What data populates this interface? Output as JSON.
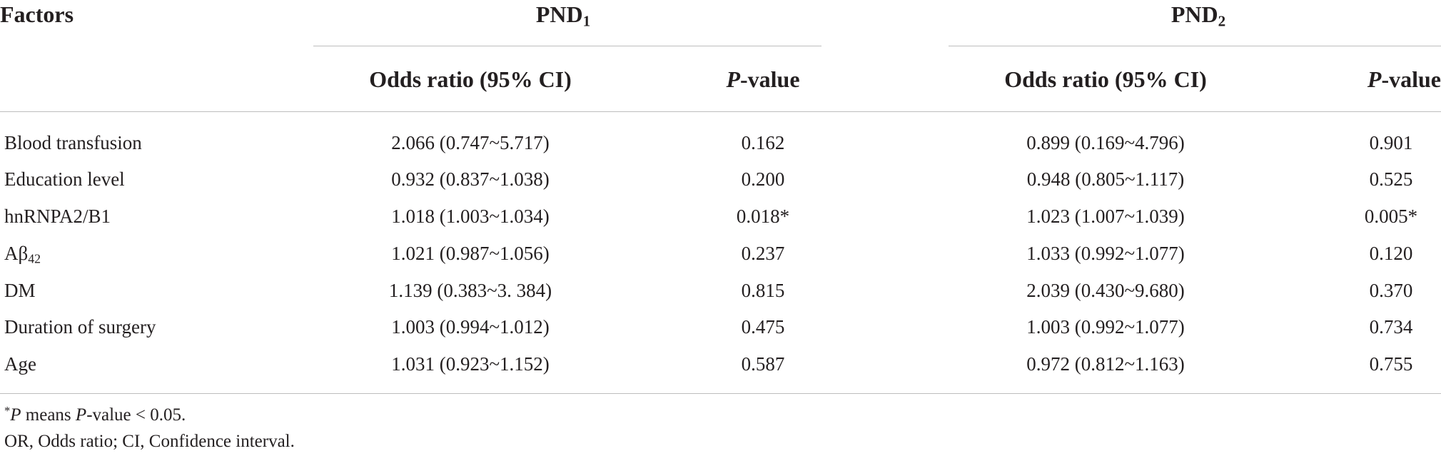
{
  "header": {
    "factors": "Factors",
    "group1": {
      "base": "PND",
      "sub": "1"
    },
    "group2": {
      "base": "PND",
      "sub": "2"
    },
    "col_or": "Odds ratio (95% CI)",
    "col_p_italic": "P",
    "col_p_rest": "-value"
  },
  "rows": [
    {
      "factor": "Blood transfusion",
      "or1": "2.066 (0.747~5.717)",
      "p1": "0.162",
      "or2": "0.899 (0.169~4.796)",
      "p2": "0.901"
    },
    {
      "factor": "Education level",
      "or1": "0.932 (0.837~1.038)",
      "p1": "0.200",
      "or2": "0.948 (0.805~1.117)",
      "p2": "0.525"
    },
    {
      "factor": "hnRNPA2/B1",
      "or1": "1.018 (1.003~1.034)",
      "p1": "0.018*",
      "or2": "1.023 (1.007~1.039)",
      "p2": "0.005*"
    },
    {
      "factor_base": "Aβ",
      "factor_sub": "42",
      "or1": "1.021 (0.987~1.056)",
      "p1": "0.237",
      "or2": "1.033 (0.992~1.077)",
      "p2": "0.120"
    },
    {
      "factor": "DM",
      "or1": "1.139 (0.383~3. 384)",
      "p1": "0.815",
      "or2": "2.039 (0.430~9.680)",
      "p2": "0.370"
    },
    {
      "factor": "Duration of surgery",
      "or1": "1.003 (0.994~1.012)",
      "p1": "0.475",
      "or2": "1.003 (0.992~1.077)",
      "p2": "0.734"
    },
    {
      "factor": "Age",
      "or1": "1.031 (0.923~1.152)",
      "p1": "0.587",
      "or2": "0.972 (0.812~1.163)",
      "p2": "0.755"
    }
  ],
  "footnotes": {
    "note1_star": "*",
    "note1_p": "P",
    "note1_means": " means ",
    "note1_p2": "P",
    "note1_rest": "-value < 0.05.",
    "note2": "OR, Odds ratio; CI, Confidence interval."
  }
}
